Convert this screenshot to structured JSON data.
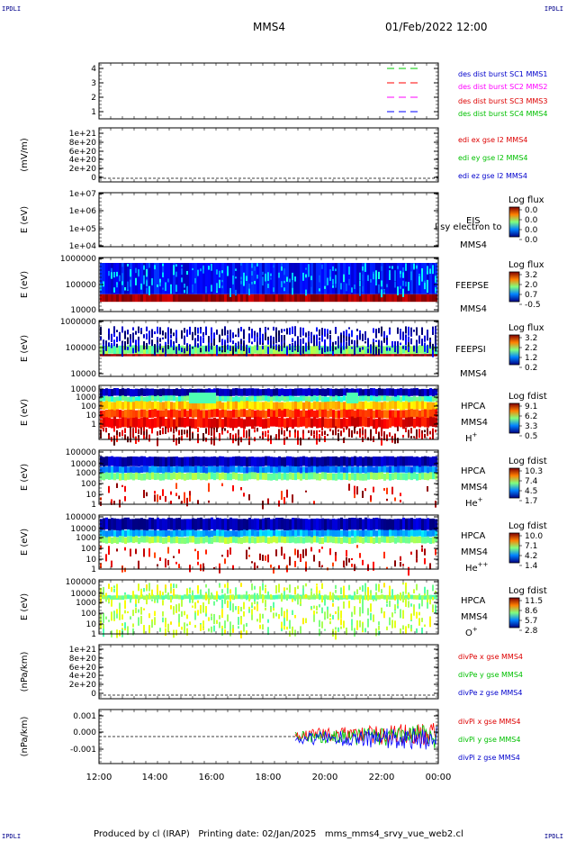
{
  "header": {
    "spacecraft": "MMS4",
    "datetime": "01/Feb/2022 12:00"
  },
  "corners": {
    "tl": "IPDLI",
    "tr": "IPDLI",
    "bl": "IPDLI",
    "br": "IPDLI"
  },
  "footer": "Produced by cl (IRAP)   Printing date: 02/Jan/2025   mms_mms4_srvy_vue_web2.cl",
  "colors": {
    "green": "#00c800",
    "magenta": "#ff00ff",
    "red": "#ff0000",
    "blue": "#0000ff",
    "label_red": "#dd0000",
    "label_green": "#00c000",
    "label_blue": "#0000cc",
    "label_magenta": "#ff00ff"
  },
  "chart_data": {
    "type": "multi-panel",
    "x_ticks": [
      "12:00",
      "14:00",
      "16:00",
      "18:00",
      "20:00",
      "22:00",
      "00:00"
    ],
    "panels": [
      {
        "ylabel": "",
        "yticks": [
          "4",
          "3",
          "2",
          "1"
        ],
        "legend": [
          {
            "text": "des dist burst SC1 MMS1",
            "color": "#0000cc"
          },
          {
            "text": "des dist burst SC2 MMS2",
            "color": "#ff00ff"
          },
          {
            "text": "des dist burst SC3 MMS3",
            "color": "#dd0000"
          },
          {
            "text": "des dist burst SC4 MMS4",
            "color": "#00c000"
          }
        ]
      },
      {
        "ylabel": "(mV/m)",
        "yticks": [
          "1e+21",
          "8e+20",
          "6e+20",
          "4e+20",
          "2e+20",
          "0"
        ],
        "legend": [
          {
            "text": "edi ex gse l2 MMS4",
            "color": "#dd0000"
          },
          {
            "text": "edi ey gse l2 MMS4",
            "color": "#00c000"
          },
          {
            "text": "edi ez gse l2 MMS4",
            "color": "#0000cc"
          }
        ]
      },
      {
        "ylabel": "E (eV)",
        "yticks": [
          "1e+07",
          "1e+06",
          "1e+05",
          "1e+04"
        ],
        "instrument": [
          "EIS",
          "MMS4"
        ],
        "overlay": "I sy electron to",
        "cbar": {
          "title": "Log flux",
          "ticks": [
            "0.0",
            "0.0",
            "0.0",
            "0.0"
          ]
        }
      },
      {
        "ylabel": "E (eV)",
        "yticks": [
          "1000000",
          "100000",
          "10000"
        ],
        "instrument": [
          "FEEPSE",
          "MMS4"
        ],
        "cbar": {
          "title": "Log flux",
          "ticks": [
            "3.2",
            "2.0",
            "0.7",
            "-0.5"
          ]
        }
      },
      {
        "ylabel": "E (eV)",
        "yticks": [
          "1000000",
          "100000",
          "10000"
        ],
        "instrument": [
          "FEEPSI",
          "MMS4"
        ],
        "cbar": {
          "title": "Log flux",
          "ticks": [
            "3.2",
            "2.2",
            "1.2",
            "0.2"
          ]
        }
      },
      {
        "ylabel": "E (eV)",
        "yticks": [
          "10000",
          "1000",
          "100",
          "10",
          "1"
        ],
        "instrument": [
          "HPCA",
          "MMS4"
        ],
        "species": "H",
        "charge": "+",
        "cbar": {
          "title": "Log fdist",
          "ticks": [
            "9.1",
            "6.2",
            "3.3",
            "0.5"
          ]
        }
      },
      {
        "ylabel": "E (eV)",
        "yticks": [
          "100000",
          "10000",
          "1000",
          "100",
          "10",
          "1"
        ],
        "instrument": [
          "HPCA",
          "MMS4"
        ],
        "species": "He",
        "charge": "+",
        "cbar": {
          "title": "Log fdist",
          "ticks": [
            "10.3",
            "7.4",
            "4.5",
            "1.7"
          ]
        }
      },
      {
        "ylabel": "E (eV)",
        "yticks": [
          "100000",
          "10000",
          "1000",
          "100",
          "10",
          "1"
        ],
        "instrument": [
          "HPCA",
          "MMS4"
        ],
        "species": "He",
        "charge": "++",
        "cbar": {
          "title": "Log fdist",
          "ticks": [
            "10.0",
            "7.1",
            "4.2",
            "1.4"
          ]
        }
      },
      {
        "ylabel": "E (eV)",
        "yticks": [
          "100000",
          "10000",
          "1000",
          "100",
          "10",
          "1"
        ],
        "instrument": [
          "HPCA",
          "MMS4"
        ],
        "species": "O",
        "charge": "+",
        "cbar": {
          "title": "Log fdist",
          "ticks": [
            "11.5",
            "8.6",
            "5.7",
            "2.8"
          ]
        }
      },
      {
        "ylabel": "(nPa/km)",
        "yticks": [
          "1e+21",
          "8e+20",
          "6e+20",
          "4e+20",
          "2e+20",
          "0"
        ],
        "legend": [
          {
            "text": "divPe x gse MMS4",
            "color": "#dd0000"
          },
          {
            "text": "divPe y gse MMS4",
            "color": "#00c000"
          },
          {
            "text": "divPe z gse MMS4",
            "color": "#0000cc"
          }
        ]
      },
      {
        "ylabel": "(nPa/km)",
        "yticks": [
          "0.001",
          "0.000",
          "-0.001"
        ],
        "legend": [
          {
            "text": "divPi x gse MMS4",
            "color": "#dd0000"
          },
          {
            "text": "divPi y gse MMS4",
            "color": "#00c000"
          },
          {
            "text": "divPi z gse MMS4",
            "color": "#0000cc"
          }
        ]
      }
    ]
  }
}
